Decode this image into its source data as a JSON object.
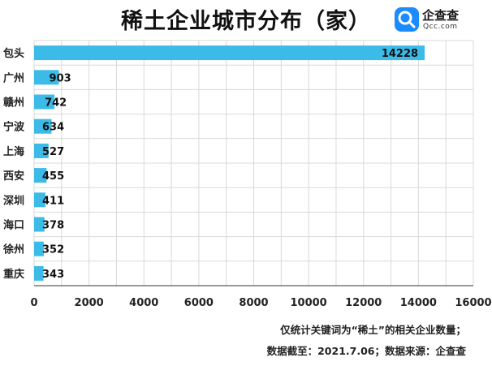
{
  "title": "稀土企业城市分布（家）",
  "logo": {
    "name": "企查查",
    "url": "Qcc.com"
  },
  "footnotes": [
    "仅统计关键词为“稀土”的相关企业数量；",
    "数据截至：2021.7.06；数据来源：企查查"
  ],
  "colors": {
    "bar": "#3dbbe8",
    "grid": "#d9d9d9",
    "axis": "#333333"
  },
  "chart_data": {
    "type": "bar",
    "orientation": "horizontal",
    "title": "稀土企业城市分布（家）",
    "categories": [
      "包头",
      "广州",
      "赣州",
      "宁波",
      "上海",
      "西安",
      "深圳",
      "海口",
      "徐州",
      "重庆"
    ],
    "values": [
      14228,
      903,
      742,
      634,
      527,
      455,
      411,
      378,
      352,
      343
    ],
    "xlim": [
      0,
      16000
    ],
    "xticks": [
      0,
      2000,
      4000,
      6000,
      8000,
      10000,
      12000,
      14000,
      16000
    ],
    "grid": true,
    "data_labels": true
  }
}
